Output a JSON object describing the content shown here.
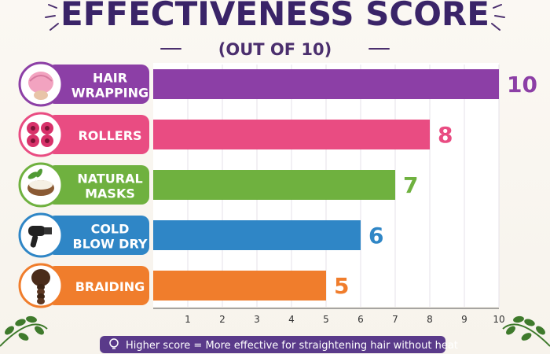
{
  "chart_data": {
    "type": "bar",
    "orientation": "horizontal",
    "title": "EFFECTIVENESS SCORE",
    "subtitle": "(OUT OF 10)",
    "categories": [
      [
        "HAIR",
        "WRAPPING"
      ],
      [
        "ROLLERS"
      ],
      [
        "NATURAL",
        "MASKS"
      ],
      [
        "COLD",
        "BLOW DRY"
      ],
      [
        "BRAIDING"
      ]
    ],
    "values": [
      10,
      8,
      7,
      6,
      5
    ],
    "colors": [
      "#8c3fa6",
      "#e94c82",
      "#6fb13f",
      "#2f86c6",
      "#f07d2c"
    ],
    "icons": [
      "hair-wrap-icon",
      "rollers-icon",
      "natural-mask-icon",
      "blow-dryer-icon",
      "braid-icon"
    ],
    "x_ticks": [
      "1",
      "2",
      "3",
      "4",
      "5",
      "6",
      "7",
      "8",
      "9",
      "10"
    ],
    "xlim": [
      0,
      10
    ],
    "grid": true,
    "footnote": "Higher score = More effective for straightening hair without heat"
  }
}
